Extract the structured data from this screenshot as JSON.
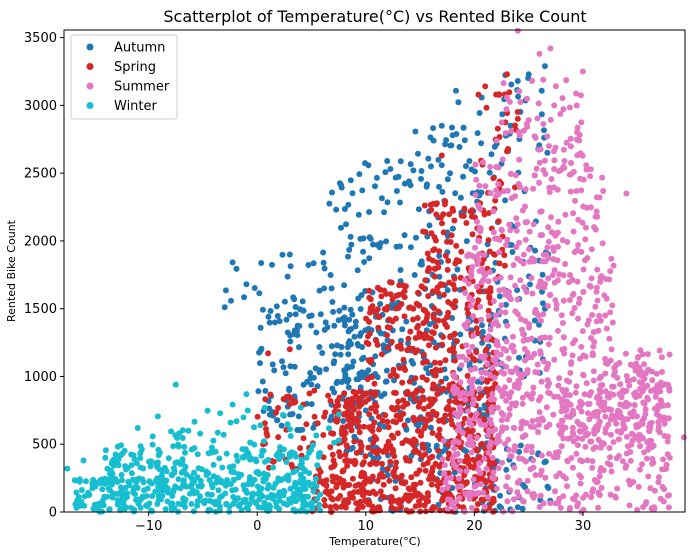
{
  "chart_data": {
    "type": "scatter",
    "title": "Scatterplot of Temperature(°C) vs Rented Bike Count",
    "xlabel": "Temperature(°C)",
    "ylabel": "Rented Bike Count",
    "xlim": [
      -17.8,
      39.4
    ],
    "ylim": [
      0,
      3556
    ],
    "xticks": [
      -10,
      0,
      10,
      20,
      30
    ],
    "yticks": [
      0,
      500,
      1000,
      1500,
      2000,
      2500,
      3000,
      3500
    ],
    "grid": false,
    "legend": {
      "placement": "top-left"
    },
    "series": [
      {
        "name": "Autumn",
        "color": "#1f77b4",
        "clusters": [
          {
            "x": [
              -4,
              6
            ],
            "y": [
              1400,
              1900
            ],
            "n": 25
          },
          {
            "x": [
              0,
              12
            ],
            "y": [
              600,
              1500
            ],
            "n": 160
          },
          {
            "x": [
              6,
              18
            ],
            "y": [
              1500,
              2600
            ],
            "n": 110
          },
          {
            "x": [
              12,
              18
            ],
            "y": [
              2450,
              2850
            ],
            "n": 16
          },
          {
            "x": [
              18,
              27
            ],
            "y": [
              1000,
              3300
            ],
            "n": 130
          },
          {
            "x": [
              8,
              22
            ],
            "y": [
              400,
              1500
            ],
            "n": 180
          },
          {
            "x": [
              10,
              27
            ],
            "y": [
              0,
              500
            ],
            "n": 80
          }
        ],
        "points": [
          {
            "x": 17,
            "y": 2850
          },
          {
            "x": 18,
            "y": 2780
          },
          {
            "x": 26.5,
            "y": 3290
          },
          {
            "x": 25,
            "y": 3230
          },
          {
            "x": 24,
            "y": 3180
          },
          {
            "x": -3,
            "y": 1510
          },
          {
            "x": 3,
            "y": 1900
          },
          {
            "x": -1,
            "y": 1680
          },
          {
            "x": 16,
            "y": 2550
          }
        ]
      },
      {
        "name": "Spring",
        "color": "#d62728",
        "clusters": [
          {
            "x": [
              5,
              22
            ],
            "y": [
              0,
              300
            ],
            "n": 260
          },
          {
            "x": [
              7,
              22
            ],
            "y": [
              300,
              900
            ],
            "n": 340
          },
          {
            "x": [
              10,
              22
            ],
            "y": [
              900,
              1700
            ],
            "n": 230
          },
          {
            "x": [
              15,
              23
            ],
            "y": [
              1700,
              2300
            ],
            "n": 90
          },
          {
            "x": [
              0,
              10
            ],
            "y": [
              300,
              900
            ],
            "n": 70
          },
          {
            "x": [
              20,
              24
            ],
            "y": [
              2300,
              3100
            ],
            "n": 25
          }
        ],
        "points": [
          {
            "x": 21,
            "y": 3140
          },
          {
            "x": 22,
            "y": 3080
          },
          {
            "x": 23,
            "y": 3230
          },
          {
            "x": 24,
            "y": 2900
          },
          {
            "x": 1,
            "y": 1170
          },
          {
            "x": 3,
            "y": 1200
          },
          {
            "x": 17,
            "y": 2630
          },
          {
            "x": 23,
            "y": 2660
          }
        ]
      },
      {
        "name": "Summer",
        "color": "#e377c2",
        "clusters": [
          {
            "x": [
              17,
              38
            ],
            "y": [
              0,
              600
            ],
            "n": 280
          },
          {
            "x": [
              18,
              38
            ],
            "y": [
              600,
              1200
            ],
            "n": 340
          },
          {
            "x": [
              19,
              33
            ],
            "y": [
              1200,
              1900
            ],
            "n": 200
          },
          {
            "x": [
              20,
              32
            ],
            "y": [
              1900,
              2600
            ],
            "n": 140
          },
          {
            "x": [
              22,
              30
            ],
            "y": [
              2600,
              3200
            ],
            "n": 55
          },
          {
            "x": [
              28,
              38
            ],
            "y": [
              500,
              900
            ],
            "n": 120
          }
        ],
        "points": [
          {
            "x": 24,
            "y": 3550
          },
          {
            "x": 27,
            "y": 3420
          },
          {
            "x": 26,
            "y": 3380
          },
          {
            "x": 30,
            "y": 3250
          },
          {
            "x": 39.3,
            "y": 550
          },
          {
            "x": 38,
            "y": 400
          },
          {
            "x": 36,
            "y": 1050
          },
          {
            "x": 34,
            "y": 2350
          }
        ]
      },
      {
        "name": "Winter",
        "color": "#17becf",
        "clusters": [
          {
            "x": [
              -17,
              6
            ],
            "y": [
              0,
              250
            ],
            "n": 360
          },
          {
            "x": [
              -14,
              6
            ],
            "y": [
              250,
              500
            ],
            "n": 170
          },
          {
            "x": [
              -10,
              8
            ],
            "y": [
              500,
              800
            ],
            "n": 35
          }
        ],
        "points": [
          {
            "x": -7.5,
            "y": 940
          },
          {
            "x": -17.5,
            "y": 320
          },
          {
            "x": -16,
            "y": 380
          },
          {
            "x": -1,
            "y": 870
          },
          {
            "x": -11,
            "y": 620
          },
          {
            "x": 7.5,
            "y": 720
          }
        ]
      }
    ]
  }
}
